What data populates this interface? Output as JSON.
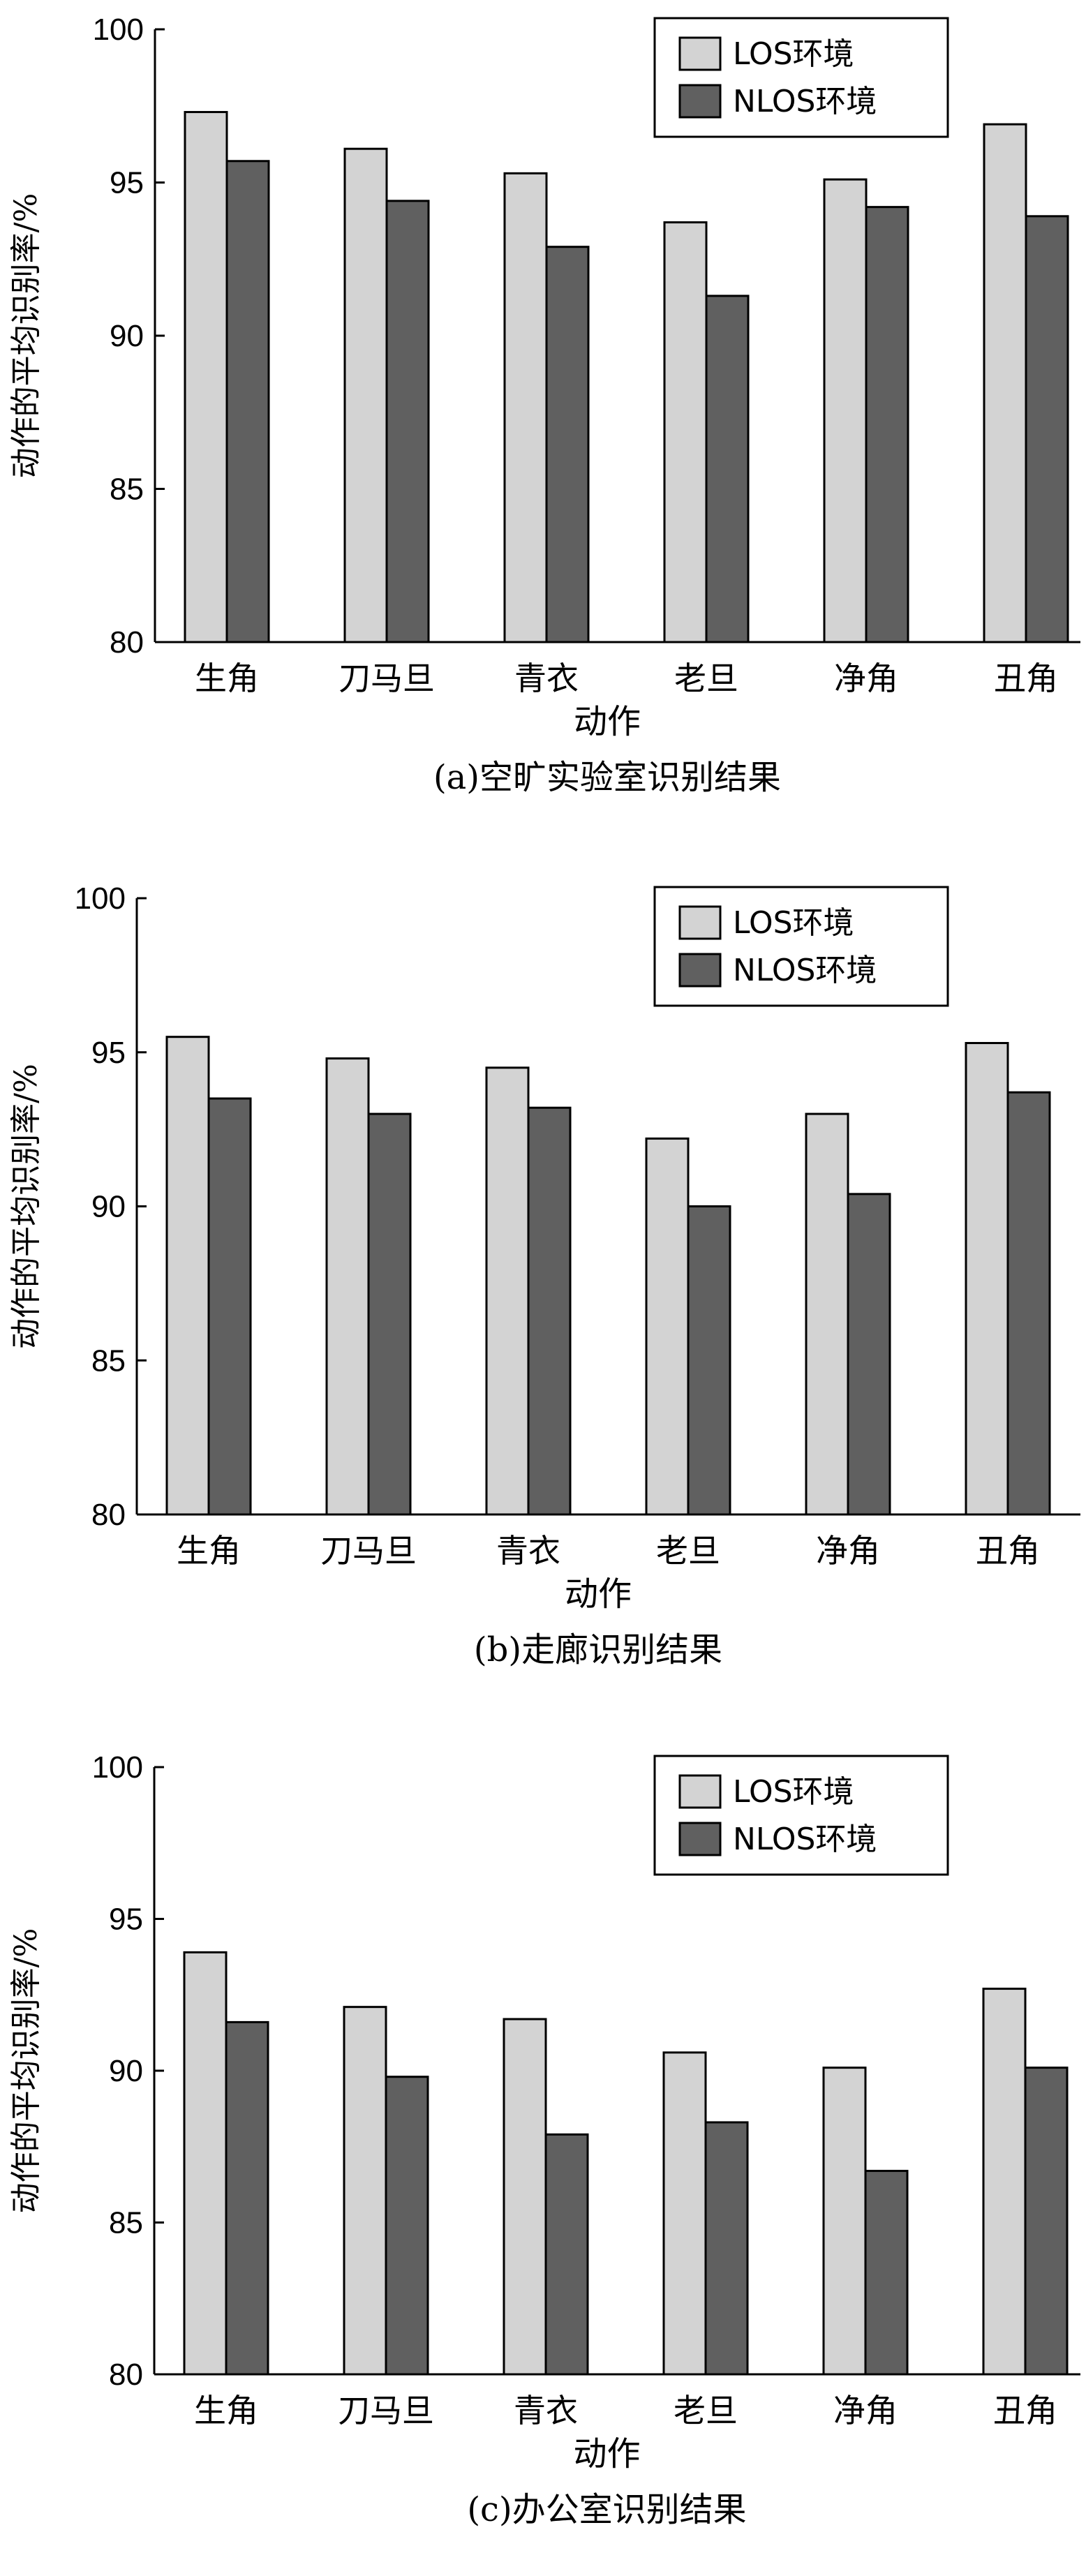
{
  "chart_data": [
    {
      "type": "bar",
      "caption": "(a)空旷实验室识别结果",
      "xlabel": "动作",
      "ylabel": "动作的平均识别率/%",
      "ylim": [
        80,
        100
      ],
      "yticks": [
        80,
        85,
        90,
        95,
        100
      ],
      "categories": [
        "生角",
        "刀马旦",
        "青衣",
        "老旦",
        "净角",
        "丑角"
      ],
      "legend_position": "top-right",
      "series": [
        {
          "name": "LOS环境",
          "color": "#d3d3d3",
          "values": [
            97.3,
            96.1,
            95.3,
            93.7,
            95.1,
            96.9
          ]
        },
        {
          "name": "NLOS环境",
          "color": "#606060",
          "values": [
            95.7,
            94.4,
            92.9,
            91.3,
            94.2,
            93.9
          ]
        }
      ]
    },
    {
      "type": "bar",
      "caption": "(b)走廊识别结果",
      "xlabel": "动作",
      "ylabel": "动作的平均识别率/%",
      "ylim": [
        80,
        100
      ],
      "yticks": [
        80,
        85,
        90,
        95,
        100
      ],
      "categories": [
        "生角",
        "刀马旦",
        "青衣",
        "老旦",
        "净角",
        "丑角"
      ],
      "legend_position": "top-right",
      "series": [
        {
          "name": "LOS环境",
          "color": "#d3d3d3",
          "values": [
            95.5,
            94.8,
            94.5,
            92.2,
            93.0,
            95.3
          ]
        },
        {
          "name": "NLOS环境",
          "color": "#606060",
          "values": [
            93.5,
            93.0,
            93.2,
            90.0,
            90.4,
            93.7
          ]
        }
      ]
    },
    {
      "type": "bar",
      "caption": "(c)办公室识别结果",
      "xlabel": "动作",
      "ylabel": "动作的平均识别率/%",
      "ylim": [
        80,
        100
      ],
      "yticks": [
        80,
        85,
        90,
        95,
        100
      ],
      "categories": [
        "生角",
        "刀马旦",
        "青衣",
        "老旦",
        "净角",
        "丑角"
      ],
      "legend_position": "top-right",
      "series": [
        {
          "name": "LOS环境",
          "color": "#d3d3d3",
          "values": [
            93.9,
            92.1,
            91.7,
            90.6,
            90.1,
            92.7
          ]
        },
        {
          "name": "NLOS环境",
          "color": "#606060",
          "values": [
            91.6,
            89.8,
            87.9,
            88.3,
            86.7,
            90.1
          ]
        }
      ]
    }
  ]
}
